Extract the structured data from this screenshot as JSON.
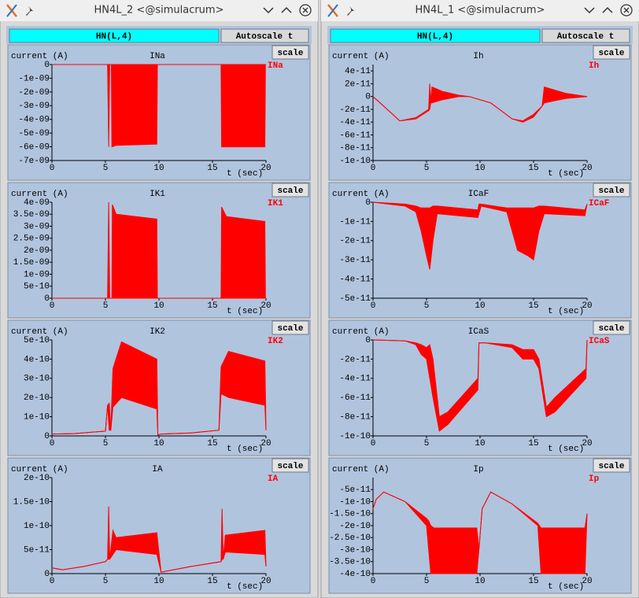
{
  "windows": [
    {
      "title": "HN4L_2 <@simulacrum>",
      "button": "HN(L,4)",
      "autoscale": "Autoscale t",
      "plots": [
        {
          "ylabel": "current (A)",
          "title": "INa",
          "trace_label": "INa",
          "scale": "scale",
          "xlabel": "t (sec)",
          "color": "#ff0000",
          "xlim": [
            0,
            20
          ],
          "xticks": [
            0,
            5,
            10,
            15,
            20
          ],
          "ylim": [
            -7e-09,
            0
          ],
          "yticks": [
            0,
            {
              "value": -1e-09,
              "label": "-1e-09"
            },
            {
              "value": -2e-09,
              "label": "-2e-09"
            },
            {
              "value": -3e-09,
              "label": "-3e-09"
            },
            {
              "value": -4e-09,
              "label": "-4e-09"
            },
            {
              "value": -5e-09,
              "label": "-5e-09"
            },
            {
              "value": -6e-09,
              "label": "-6e-09"
            },
            {
              "value": -7e-09,
              "label": "-7e-09"
            }
          ],
          "x": [
            0,
            5.2,
            5.3,
            5.4,
            5.55,
            5.6,
            6,
            9.8,
            9.85,
            15.8,
            15.85,
            16.3,
            19.9,
            19.95,
            20
          ],
          "y_max": [
            0,
            0,
            0,
            0,
            0,
            0,
            0,
            0,
            0,
            0,
            0,
            0,
            0,
            0,
            0
          ],
          "y_min": [
            0,
            0,
            -6e-09,
            0,
            0,
            -6e-09,
            -5.9e-09,
            -5.8e-09,
            0,
            0,
            -6e-09,
            -6e-09,
            -6e-09,
            0,
            0
          ]
        },
        {
          "ylabel": "current (A)",
          "title": "IK1",
          "trace_label": "IK1",
          "scale": "scale",
          "xlabel": "t (sec)",
          "color": "#ff0000",
          "xlim": [
            0,
            20
          ],
          "xticks": [
            0,
            5,
            10,
            15,
            20
          ],
          "ylim": [
            0,
            4e-09
          ],
          "yticks": [
            0,
            5e-10,
            {
              "value": 1e-09,
              "label": "1e-09"
            },
            {
              "value": 1.5e-09,
              "label": "1.5e-09"
            },
            {
              "value": 2e-09,
              "label": "2e-09"
            },
            {
              "value": 2.5e-09,
              "label": "2.5e-09"
            },
            {
              "value": 3e-09,
              "label": "3e-09"
            },
            {
              "value": 3.5e-09,
              "label": "3.5e-09"
            },
            {
              "value": 4e-09,
              "label": "4e-09"
            }
          ],
          "x": [
            0,
            5.2,
            5.3,
            5.4,
            5.6,
            5.65,
            6,
            9.8,
            9.85,
            15.8,
            15.85,
            16.3,
            19.9,
            19.95,
            20
          ],
          "y_max": [
            0,
            0,
            4e-09,
            0,
            0,
            3.9e-09,
            3.5e-09,
            3.3e-09,
            0,
            0,
            3.8e-09,
            3.4e-09,
            3.2e-09,
            0,
            0
          ],
          "y_min": [
            0,
            0,
            0,
            0,
            0,
            0,
            0,
            0,
            0,
            0,
            0,
            0,
            0,
            0,
            0
          ]
        },
        {
          "ylabel": "current (A)",
          "title": "IK2",
          "trace_label": "IK2",
          "scale": "scale",
          "xlabel": "t (sec)",
          "color": "#ff0000",
          "xlim": [
            0,
            20
          ],
          "xticks": [
            0,
            5,
            10,
            15,
            20
          ],
          "ylim": [
            0,
            5e-10
          ],
          "yticks": [
            0,
            1e-10,
            2e-10,
            3e-10,
            4e-10,
            5e-10
          ],
          "x": [
            0,
            2,
            5,
            5.2,
            5.35,
            5.5,
            5.7,
            6.5,
            9.8,
            9.9,
            10.2,
            13,
            15.6,
            15.8,
            16.5,
            19.9,
            20
          ],
          "y_max": [
            1e-11,
            1.2e-11,
            2.5e-11,
            1.6e-10,
            1.7e-10,
            3e-11,
            3.5e-10,
            4.9e-10,
            4e-10,
            5e-12,
            1e-11,
            1.5e-11,
            3e-11,
            3.6e-10,
            4.4e-10,
            3.9e-10,
            3e-11
          ],
          "y_min": [
            1e-11,
            1.2e-11,
            2.5e-11,
            1.6e-10,
            3e-11,
            3e-11,
            1.5e-10,
            2e-10,
            1.4e-10,
            5e-12,
            1e-11,
            1.5e-11,
            3e-11,
            2.2e-10,
            2e-10,
            1.6e-10,
            3e-11
          ]
        },
        {
          "ylabel": "current (A)",
          "title": "IA",
          "trace_label": "IA",
          "scale": "scale",
          "xlabel": "t (sec)",
          "color": "#ff0000",
          "xlim": [
            0,
            20
          ],
          "xticks": [
            0,
            5,
            10,
            15,
            20
          ],
          "ylim": [
            0,
            2e-10
          ],
          "yticks": [
            0,
            5e-11,
            1e-10,
            1.5e-10,
            2e-10
          ],
          "x": [
            0,
            1,
            3,
            5,
            5.2,
            5.3,
            5.4,
            5.7,
            6,
            9.8,
            10.2,
            13,
            15.8,
            15.9,
            16,
            16.2,
            19.9,
            20
          ],
          "y_max": [
            1.2e-11,
            8e-12,
            1.5e-11,
            2.5e-11,
            3e-11,
            1.4e-10,
            3e-11,
            9e-11,
            7.5e-11,
            8.5e-11,
            3e-12,
            1.5e-11,
            2.5e-11,
            1.35e-10,
            3e-11,
            8e-11,
            9e-11,
            1.5e-11
          ],
          "y_min": [
            1.2e-11,
            8e-12,
            1.5e-11,
            2.5e-11,
            3e-11,
            3e-11,
            3e-11,
            4e-11,
            5e-11,
            4e-11,
            3e-12,
            1.5e-11,
            2.5e-11,
            3e-11,
            3e-11,
            4.5e-11,
            4e-11,
            1.5e-11
          ]
        }
      ]
    },
    {
      "title": "HN4L_1 <@simulacrum>",
      "button": "HN(L,4)",
      "autoscale": "Autoscale t",
      "plots": [
        {
          "ylabel": "current (A)",
          "title": "Ih",
          "trace_label": "Ih",
          "scale": "scale",
          "xlabel": "t (sec)",
          "color": "#ff0000",
          "xlim": [
            0,
            20
          ],
          "xticks": [
            0,
            5,
            10,
            15,
            20
          ],
          "ylim": [
            -1e-10,
            5e-11
          ],
          "yticks": [
            4e-11,
            2e-11,
            0,
            -2e-11,
            -4e-11,
            -6e-11,
            -8e-11,
            -1e-10
          ],
          "x": [
            0,
            1,
            2.5,
            4,
            5.2,
            5.3,
            5.4,
            5.5,
            6.5,
            8,
            9,
            11,
            13,
            14,
            15,
            15.8,
            16,
            18,
            20
          ],
          "y_max": [
            0,
            -1.5e-11,
            -3.8e-11,
            -3.3e-11,
            -2e-11,
            2e-11,
            -1e-11,
            1.5e-11,
            8e-12,
            2e-12,
            0,
            -1e-11,
            -3.5e-11,
            -3.8e-11,
            -2.8e-11,
            -1.5e-11,
            1.5e-11,
            5e-12,
            0
          ],
          "y_min": [
            0,
            -1.5e-11,
            -3.8e-11,
            -3.5e-11,
            -2.2e-11,
            -2e-11,
            -1e-11,
            -1e-11,
            -5e-12,
            0,
            0,
            -1e-11,
            -3.5e-11,
            -4e-11,
            -3.2e-11,
            -1.5e-11,
            -1e-11,
            -3e-12,
            0
          ]
        },
        {
          "ylabel": "current (A)",
          "title": "ICaF",
          "trace_label": "ICaF",
          "scale": "scale",
          "xlabel": "t (sec)",
          "color": "#ff0000",
          "xlim": [
            0,
            20
          ],
          "xticks": [
            0,
            5,
            10,
            15,
            20
          ],
          "ylim": [
            -5e-11,
            0
          ],
          "yticks": [
            0,
            -1e-11,
            -2e-11,
            -3e-11,
            -4e-11,
            -5e-11
          ],
          "x": [
            0,
            3,
            4,
            4.5,
            5,
            5.3,
            5.6,
            6,
            9.8,
            9.9,
            10.1,
            12.5,
            13.5,
            14.5,
            15,
            15.5,
            16,
            19.8,
            20
          ],
          "y_max": [
            0,
            -1e-12,
            -2e-12,
            -3e-12,
            -3e-12,
            -3e-12,
            -2e-12,
            -2e-12,
            -4e-12,
            -1e-12,
            -1e-12,
            -3e-12,
            -3e-12,
            -3e-12,
            -3e-12,
            -2e-12,
            -2e-12,
            -4e-12,
            -1e-12
          ],
          "y_min": [
            0,
            -2e-12,
            -5e-12,
            -1.5e-11,
            -2.8e-11,
            -3.5e-11,
            -2e-11,
            -6e-12,
            -8e-12,
            -6e-12,
            -2e-12,
            -5e-12,
            -2.5e-11,
            -2.8e-11,
            -3e-11,
            -1.5e-11,
            -6e-12,
            -7e-12,
            -1e-12
          ]
        },
        {
          "ylabel": "current (A)",
          "title": "ICaS",
          "trace_label": "ICaS",
          "scale": "scale",
          "xlabel": "t (sec)",
          "color": "#ff0000",
          "xlim": [
            0,
            20
          ],
          "xticks": [
            0,
            5,
            10,
            15,
            20
          ],
          "ylim": [
            -1e-10,
            0
          ],
          "yticks": [
            0,
            -2e-11,
            -4e-11,
            -6e-11,
            -8e-11,
            -1e-10
          ],
          "x": [
            0,
            3,
            4,
            4.5,
            5,
            5.3,
            5.6,
            6.2,
            7,
            9.8,
            9.9,
            10.5,
            13,
            14,
            15,
            15.5,
            16.2,
            17,
            19.9,
            20
          ],
          "y_max": [
            0,
            -1e-12,
            -3e-12,
            -5e-12,
            -8e-12,
            -5e-12,
            -2e-11,
            -8e-11,
            -7.5e-11,
            -4e-11,
            -3e-12,
            -3e-12,
            -5e-12,
            -1e-11,
            -1e-11,
            -2e-11,
            -7e-11,
            -6e-11,
            -3e-11,
            0
          ],
          "y_min": [
            0,
            -1e-12,
            -5e-12,
            -1.5e-11,
            -2e-11,
            -4e-11,
            -6e-11,
            -9.5e-11,
            -8.8e-11,
            -5.2e-11,
            -3e-12,
            -3e-12,
            -8e-12,
            -2e-11,
            -2e-11,
            -3e-11,
            -8e-11,
            -7.5e-11,
            -4e-11,
            0
          ]
        },
        {
          "ylabel": "current (A)",
          "title": "Ip",
          "trace_label": "Ip",
          "scale": "scale",
          "xlabel": "t (sec)",
          "color": "#ff0000",
          "xlim": [
            0,
            20
          ],
          "xticks": [
            0,
            5,
            10,
            15,
            20
          ],
          "ylim": [
            -4e-10,
            0
          ],
          "yticks": [
            -5e-11,
            -1e-10,
            -1.5e-10,
            -2e-10,
            -2.5e-10,
            -3e-10,
            -3.5e-10,
            -4e-10
          ],
          "x": [
            0,
            0.3,
            1,
            3,
            5,
            5.2,
            5.4,
            5.7,
            6,
            9.7,
            9.9,
            10.2,
            11,
            13,
            15.4,
            15.7,
            16,
            19.8,
            20
          ],
          "y_max": [
            -1.3e-10,
            -9e-11,
            -6e-11,
            -1e-10,
            -1.7e-10,
            -1.8e-10,
            -2e-10,
            -2.1e-10,
            -2.1e-10,
            -2.1e-10,
            -3e-10,
            -1.3e-10,
            -6e-11,
            -1.1e-10,
            -1.9e-10,
            -2.1e-10,
            -2.1e-10,
            -2.1e-10,
            -1.5e-10
          ],
          "y_min": [
            -1.3e-10,
            -9e-11,
            -6e-11,
            -1e-10,
            -2e-10,
            -3e-10,
            -4e-10,
            -4e-10,
            -4e-10,
            -4e-10,
            -3e-10,
            -1.3e-10,
            -6e-11,
            -1.1e-10,
            -2e-10,
            -4e-10,
            -4e-10,
            -4e-10,
            -1.5e-10
          ]
        }
      ]
    }
  ]
}
